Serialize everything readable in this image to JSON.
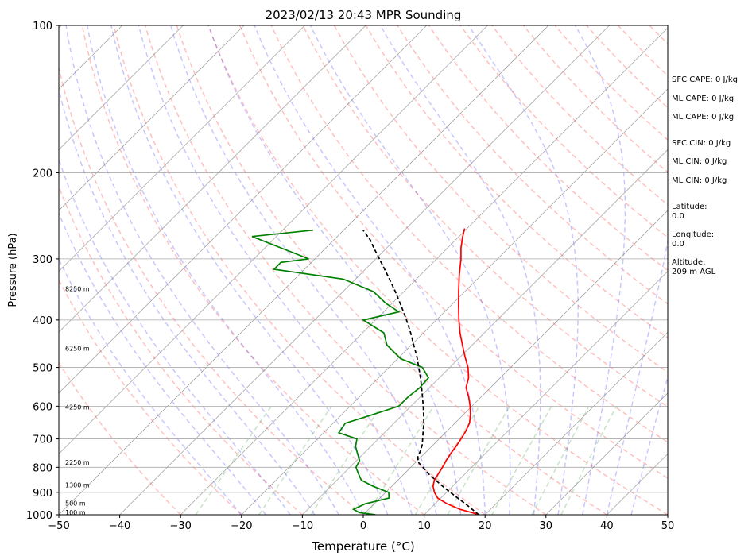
{
  "chart_data": {
    "type": "line",
    "title": "2023/02/13 20:43 MPR Sounding",
    "xlabel": "Temperature (°C)",
    "ylabel": "Pressure (hPa)",
    "xlim": [
      -50,
      50
    ],
    "ylim": [
      1000,
      100
    ],
    "y_scale": "log",
    "x_ticks": [
      "−50",
      "−40",
      "−30",
      "−20",
      "−10",
      "0",
      "10",
      "20",
      "30",
      "40",
      "50"
    ],
    "y_ticks": [
      "100",
      "200",
      "300",
      "400",
      "500",
      "600",
      "700",
      "800",
      "900",
      "1000"
    ],
    "grid": true,
    "series": [
      {
        "role": "temperature",
        "color": "#ff0000",
        "style": "solid",
        "points": [
          [
            1000,
            19
          ],
          [
            990,
            17.5
          ],
          [
            975,
            15
          ],
          [
            950,
            12
          ],
          [
            925,
            9.5
          ],
          [
            900,
            8
          ],
          [
            875,
            6.8
          ],
          [
            850,
            6
          ],
          [
            825,
            5.6
          ],
          [
            800,
            5.2
          ],
          [
            775,
            4.7
          ],
          [
            750,
            4.3
          ],
          [
            725,
            4.0
          ],
          [
            700,
            3.6
          ],
          [
            675,
            3.1
          ],
          [
            650,
            2.4
          ],
          [
            625,
            1.2
          ],
          [
            600,
            -0.3
          ],
          [
            575,
            -2.0
          ],
          [
            550,
            -4.0
          ],
          [
            525,
            -5.2
          ],
          [
            500,
            -7.0
          ],
          [
            475,
            -9.3
          ],
          [
            450,
            -11.6
          ],
          [
            425,
            -14.0
          ],
          [
            400,
            -16.3
          ],
          [
            375,
            -18.6
          ],
          [
            350,
            -21.0
          ],
          [
            325,
            -23.5
          ],
          [
            300,
            -26.0
          ],
          [
            285,
            -27.8
          ],
          [
            270,
            -29.4
          ],
          [
            260,
            -30.4
          ]
        ]
      },
      {
        "role": "dewpoint",
        "color": "#008000",
        "style": "solid",
        "points": [
          [
            1000,
            2
          ],
          [
            990,
            -1
          ],
          [
            975,
            -2.5
          ],
          [
            950,
            -1.5
          ],
          [
            925,
            1.5
          ],
          [
            900,
            0.5
          ],
          [
            875,
            -3
          ],
          [
            850,
            -6
          ],
          [
            825,
            -7.5
          ],
          [
            800,
            -9
          ],
          [
            775,
            -9.5
          ],
          [
            750,
            -11
          ],
          [
            725,
            -12.5
          ],
          [
            700,
            -13.5
          ],
          [
            680,
            -17.5
          ],
          [
            650,
            -18
          ],
          [
            625,
            -15
          ],
          [
            600,
            -12
          ],
          [
            575,
            -12
          ],
          [
            550,
            -11.6
          ],
          [
            525,
            -11.8
          ],
          [
            500,
            -14.5
          ],
          [
            480,
            -19.5
          ],
          [
            450,
            -24
          ],
          [
            425,
            -26.5
          ],
          [
            400,
            -32
          ],
          [
            385,
            -27.5
          ],
          [
            370,
            -31
          ],
          [
            350,
            -35
          ],
          [
            330,
            -42
          ],
          [
            315,
            -55
          ],
          [
            305,
            -55
          ],
          [
            300,
            -51
          ],
          [
            270,
            -64
          ],
          [
            262,
            -55
          ]
        ]
      },
      {
        "role": "parcel-profile",
        "color": "#000000",
        "style": "dashed",
        "points": [
          [
            1000,
            19
          ],
          [
            975,
            17
          ],
          [
            950,
            15
          ],
          [
            925,
            12.8
          ],
          [
            900,
            10.6
          ],
          [
            875,
            8.4
          ],
          [
            850,
            6.2
          ],
          [
            825,
            4
          ],
          [
            800,
            2
          ],
          [
            780,
            0.3
          ],
          [
            760,
            -0.6
          ],
          [
            740,
            -1.1
          ],
          [
            720,
            -1.8
          ],
          [
            700,
            -2.7
          ],
          [
            675,
            -3.9
          ],
          [
            650,
            -5.1
          ],
          [
            625,
            -6.5
          ],
          [
            600,
            -8
          ],
          [
            575,
            -9.6
          ],
          [
            550,
            -11.3
          ],
          [
            525,
            -13.1
          ],
          [
            500,
            -15.1
          ],
          [
            475,
            -17.2
          ],
          [
            450,
            -19.6
          ],
          [
            425,
            -22.1
          ],
          [
            400,
            -24.9
          ],
          [
            375,
            -28.0
          ],
          [
            350,
            -31.4
          ],
          [
            325,
            -35.2
          ],
          [
            300,
            -39.4
          ],
          [
            285,
            -42.1
          ],
          [
            275,
            -43.9
          ],
          [
            262,
            -46.8
          ]
        ]
      }
    ],
    "height_labels": [
      {
        "text": "100 m",
        "p": 988
      },
      {
        "text": "500 m",
        "p": 948
      },
      {
        "text": "1300 m",
        "p": 869
      },
      {
        "text": "2250 m",
        "p": 781
      },
      {
        "text": "4250 m",
        "p": 603
      },
      {
        "text": "6250 m",
        "p": 457
      },
      {
        "text": "8250 m",
        "p": 345
      }
    ],
    "background_lines": {
      "isotherms": "gray-solid-skewed",
      "dry_adiabats": "red-dashed",
      "moist_adiabats": "blue-dashed",
      "mixing_ratio": "green-dashed"
    }
  },
  "side_panel": {
    "sfc_cape": "SFC CAPE: 0 J/kg",
    "ml_cape_1": "ML CAPE: 0 J/kg",
    "ml_cape_2": "ML CAPE: 0 J/kg",
    "sfc_cin": "SFC CIN: 0 J/kg",
    "ml_cin_1": "ML CIN: 0 J/kg",
    "ml_cin_2": "ML CIN: 0 J/kg",
    "latitude": "Latitude:\n0.0",
    "longitude": "Longitude:\n0.0",
    "altitude": "Altitude:\n209 m AGL"
  }
}
